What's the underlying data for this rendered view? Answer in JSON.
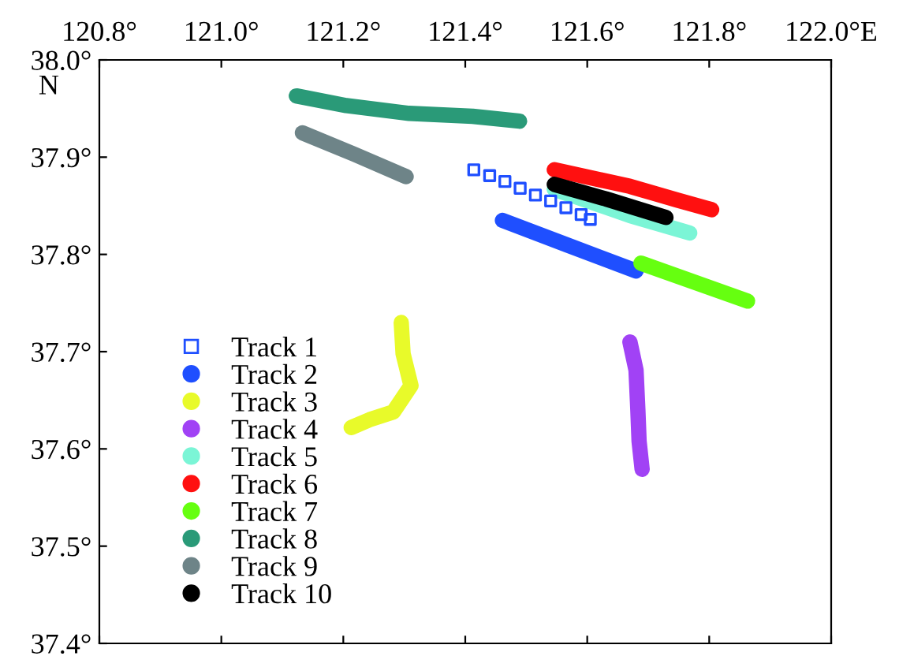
{
  "chart_data": {
    "type": "line",
    "xlim": [
      120.8,
      122.0
    ],
    "ylim": [
      37.4,
      38.0
    ],
    "xticks": [
      {
        "value": 120.8,
        "label": "120.8°"
      },
      {
        "value": 121.0,
        "label": "121.0°"
      },
      {
        "value": 121.2,
        "label": "121.2°"
      },
      {
        "value": 121.4,
        "label": "121.4°"
      },
      {
        "value": 121.6,
        "label": "121.6°"
      },
      {
        "value": 121.8,
        "label": "121.8°"
      },
      {
        "value": 122.0,
        "label": "122.0°E"
      }
    ],
    "yticks": [
      {
        "value": 37.4,
        "label": "37.4°"
      },
      {
        "value": 37.5,
        "label": "37.5°"
      },
      {
        "value": 37.6,
        "label": "37.6°"
      },
      {
        "value": 37.7,
        "label": "37.7°"
      },
      {
        "value": 37.8,
        "label": "37.8°"
      },
      {
        "value": 37.9,
        "label": "37.9°"
      },
      {
        "value": 38.0,
        "label": "38.0°"
      }
    ],
    "ylabel": "N",
    "grid": false,
    "legend": "bottom left",
    "series": [
      {
        "name": "Track 1",
        "type": "scatter",
        "marker": "square",
        "color": "#1f4fff",
        "x": [
          121.414,
          121.44,
          121.465,
          121.49,
          121.515,
          121.54,
          121.565,
          121.59,
          121.605
        ],
        "values": [
          37.887,
          37.881,
          37.875,
          37.868,
          37.861,
          37.855,
          37.848,
          37.841,
          37.836
        ]
      },
      {
        "name": "Track 2",
        "color": "#1f4fff",
        "x": [
          121.461,
          121.566,
          121.68
        ],
        "values": [
          37.835,
          37.81,
          37.783
        ]
      },
      {
        "name": "Track 3",
        "color": "#e8fa2a",
        "x": [
          121.295,
          121.298,
          121.311,
          121.282,
          121.243,
          121.213
        ],
        "values": [
          37.73,
          37.698,
          37.665,
          37.638,
          37.63,
          37.622
        ]
      },
      {
        "name": "Track 4",
        "color": "#a142f5",
        "x": [
          121.67,
          121.68,
          121.683,
          121.685,
          121.69
        ],
        "values": [
          37.71,
          37.681,
          37.64,
          37.608,
          37.579
        ]
      },
      {
        "name": "Track 5",
        "color": "#7bf5d6",
        "x": [
          121.546,
          121.67,
          121.768
        ],
        "values": [
          37.867,
          37.84,
          37.822
        ]
      },
      {
        "name": "Track 6",
        "color": "#ff1010",
        "x": [
          121.546,
          121.67,
          121.747,
          121.804
        ],
        "values": [
          37.887,
          37.87,
          37.856,
          37.846
        ]
      },
      {
        "name": "Track 7",
        "color": "#66ff10",
        "x": [
          121.688,
          121.863
        ],
        "values": [
          37.791,
          37.752
        ]
      },
      {
        "name": "Track 8",
        "color": "#2a9a78",
        "x": [
          121.123,
          121.205,
          121.308,
          121.412,
          121.489
        ],
        "values": [
          37.963,
          37.953,
          37.945,
          37.942,
          37.937
        ]
      },
      {
        "name": "Track 9",
        "color": "#6e8488",
        "x": [
          121.133,
          121.218,
          121.303
        ],
        "values": [
          37.925,
          37.903,
          37.88
        ]
      },
      {
        "name": "Track 10",
        "color": "#000000",
        "x": [
          121.546,
          121.631,
          121.729
        ],
        "values": [
          37.872,
          37.857,
          37.838
        ]
      }
    ]
  }
}
